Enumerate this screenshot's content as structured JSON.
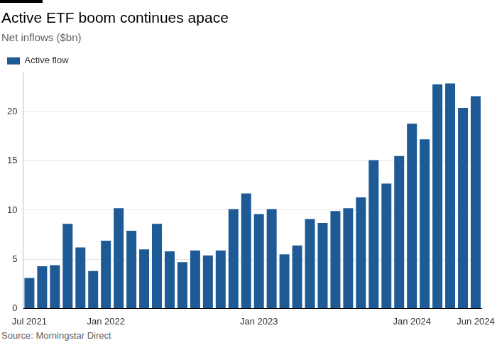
{
  "chart_data": {
    "type": "bar",
    "title": "Active ETF boom continues apace",
    "subtitle": "Net inflows ($bn)",
    "source": "Source: Morningstar Direct",
    "categories": [
      "Jul 2021",
      null,
      null,
      null,
      null,
      null,
      "Jan 2022",
      null,
      null,
      null,
      null,
      null,
      null,
      null,
      null,
      null,
      null,
      null,
      "Jan 2023",
      null,
      null,
      null,
      null,
      null,
      null,
      null,
      null,
      null,
      null,
      null,
      "Jan 2024",
      null,
      null,
      null,
      null,
      "Jun 2024"
    ],
    "series": [
      {
        "name": "Active flow",
        "color": "#1d5a96",
        "values": [
          3.1,
          4.3,
          4.4,
          8.6,
          6.2,
          3.8,
          6.9,
          10.2,
          7.9,
          6.0,
          8.6,
          5.8,
          4.7,
          5.9,
          5.4,
          5.9,
          10.1,
          11.7,
          9.6,
          10.1,
          5.5,
          6.4,
          9.1,
          8.7,
          9.9,
          10.2,
          11.3,
          15.1,
          12.7,
          15.5,
          18.8,
          17.2,
          22.8,
          22.9,
          20.4,
          21.6
        ]
      }
    ],
    "ylim": [
      0,
      24
    ],
    "yticks": [
      0,
      5,
      10,
      15,
      20
    ],
    "grid": true,
    "legend": "top-left"
  }
}
